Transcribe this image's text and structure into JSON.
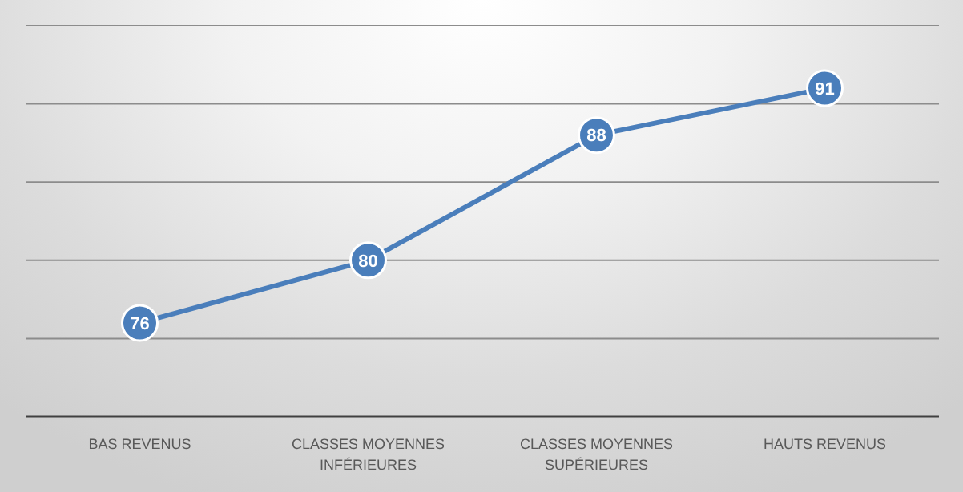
{
  "chart_data": {
    "type": "line",
    "categories": [
      "BAS REVENUS",
      "CLASSES MOYENNES\nINFÉRIEURES",
      "CLASSES MOYENNES\nSUPÉRIEURES",
      "HAUTS REVENUS"
    ],
    "series": [
      {
        "color": "#4a7ebb",
        "values": [
          76,
          80,
          88,
          91
        ]
      }
    ],
    "ylim": [
      70,
      95
    ],
    "yticks": [
      {
        "value": 75,
        "label": null
      },
      {
        "value": 80,
        "label": null
      },
      {
        "value": 85,
        "label": null
      },
      {
        "value": 90,
        "label": null
      },
      {
        "value": 95,
        "label": null
      }
    ],
    "tick_labels": "x",
    "grid": "y",
    "marker": "circle",
    "line_style": "solid",
    "data_labels": true
  }
}
